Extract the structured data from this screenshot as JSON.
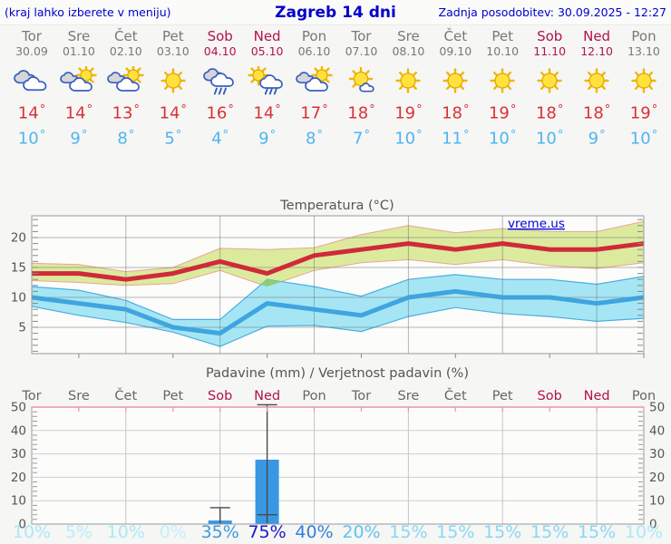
{
  "header": {
    "left_note": "(kraj lahko izberete v meniju)",
    "title": "Zagreb 14 dni",
    "last_update": "Zadnja posodobitev: 30.09.2025 - 12:27"
  },
  "colors": {
    "header_text": "#0000cc",
    "weekday": "#787878",
    "weekend": "#b0134d",
    "high_temp": "#d83238",
    "low_temp": "#4fb4f2",
    "max_line": "#cf2a3a",
    "min_line": "#3fa5e0",
    "max_band": "#dcea9e",
    "min_band": "#a6e6f4",
    "band_overlap": "#8ccf70",
    "bar": "#3898e4",
    "axis_text": "#555555",
    "watermark": "#0000dd",
    "precip_top_border": "#e895a5"
  },
  "days": [
    {
      "name": "Tor",
      "date": "30.09",
      "weekend": false,
      "icon": "cloudy",
      "high": 14,
      "low": 10
    },
    {
      "name": "Sre",
      "date": "01.10",
      "weekend": false,
      "icon": "partly-cloudy",
      "high": 14,
      "low": 9
    },
    {
      "name": "Čet",
      "date": "02.10",
      "weekend": false,
      "icon": "partly-cloudy",
      "high": 13,
      "low": 8
    },
    {
      "name": "Pet",
      "date": "03.10",
      "weekend": false,
      "icon": "sunny",
      "high": 14,
      "low": 5
    },
    {
      "name": "Sob",
      "date": "04.10",
      "weekend": true,
      "icon": "rain",
      "high": 16,
      "low": 4
    },
    {
      "name": "Ned",
      "date": "05.10",
      "weekend": true,
      "icon": "sun-rain",
      "high": 14,
      "low": 9
    },
    {
      "name": "Pon",
      "date": "06.10",
      "weekend": false,
      "icon": "partly-cloudy",
      "high": 17,
      "low": 8
    },
    {
      "name": "Tor",
      "date": "07.10",
      "weekend": false,
      "icon": "mostly-sunny",
      "high": 18,
      "low": 7
    },
    {
      "name": "Sre",
      "date": "08.10",
      "weekend": false,
      "icon": "sunny",
      "high": 19,
      "low": 10
    },
    {
      "name": "Čet",
      "date": "09.10",
      "weekend": false,
      "icon": "sunny",
      "high": 18,
      "low": 11
    },
    {
      "name": "Pet",
      "date": "10.10",
      "weekend": false,
      "icon": "sunny",
      "high": 19,
      "low": 10
    },
    {
      "name": "Sob",
      "date": "11.10",
      "weekend": true,
      "icon": "sunny",
      "high": 18,
      "low": 10
    },
    {
      "name": "Ned",
      "date": "12.10",
      "weekend": true,
      "icon": "sunny",
      "high": 18,
      "low": 9
    },
    {
      "name": "Pon",
      "date": "13.10",
      "weekend": false,
      "icon": "sunny",
      "high": 19,
      "low": 10
    }
  ],
  "chart_data": [
    {
      "type": "line",
      "title": "Temperatura (°C)",
      "watermark": "vreme.us",
      "categories": [
        "Tor",
        "Sre",
        "Čet",
        "Pet",
        "Sob",
        "Ned",
        "Pon",
        "Tor",
        "Sre",
        "Čet",
        "Pet",
        "Sob",
        "Ned",
        "Pon"
      ],
      "ylim": [
        0.6,
        23.6
      ],
      "yticks": [
        5,
        10,
        15,
        20
      ],
      "grid": true,
      "legend": "none",
      "series": [
        {
          "name": "max temperature",
          "color": "#cf2a3a",
          "values": [
            14,
            14,
            13,
            14,
            16,
            14,
            17,
            18,
            19,
            18,
            19,
            18,
            18,
            19
          ]
        },
        {
          "name": "min temperature",
          "color": "#3fa5e0",
          "values": [
            10,
            9,
            8,
            5,
            4,
            9,
            8,
            7,
            10,
            11,
            10,
            10,
            9,
            10
          ]
        }
      ],
      "bands": [
        {
          "name": "max range",
          "fill": "#dcea9e",
          "edge": "#eaa68f",
          "upper": [
            15.7,
            15.5,
            14.3,
            15,
            18.2,
            18,
            18.3,
            20.5,
            22,
            20.8,
            21.5,
            21,
            21,
            22.7
          ],
          "lower": [
            12.8,
            12.5,
            12,
            12.3,
            14.5,
            11.8,
            14.5,
            15.8,
            16.3,
            15.5,
            16.3,
            15.3,
            14.8,
            15.8
          ]
        },
        {
          "name": "min range",
          "fill": "#a6e6f4",
          "edge": "#49aee2",
          "upper": [
            11.8,
            11.2,
            9.5,
            6.3,
            6.3,
            13,
            11.8,
            10.2,
            13,
            13.8,
            13,
            13,
            12.2,
            13.5
          ],
          "lower": [
            8.5,
            7,
            5.8,
            4.2,
            1.8,
            5.2,
            5.3,
            4.3,
            6.8,
            8.3,
            7.3,
            6.8,
            6,
            6.5
          ]
        }
      ]
    },
    {
      "type": "bar",
      "title": "Padavine (mm) / Verjetnost padavin (%)",
      "categories": [
        "Tor",
        "Sre",
        "Čet",
        "Pet",
        "Sob",
        "Ned",
        "Pon",
        "Tor",
        "Sre",
        "Čet",
        "Pet",
        "Sob",
        "Ned",
        "Pon"
      ],
      "ylim": [
        0,
        52
      ],
      "yticks": [
        0,
        10,
        20,
        30,
        40,
        50
      ],
      "values": [
        0,
        0,
        0,
        0,
        1.5,
        27.5,
        0,
        0,
        0,
        0,
        0,
        0,
        0,
        0
      ],
      "whiskers": [
        {
          "day_index": 4,
          "low": 1,
          "high": 7
        },
        {
          "day_index": 5,
          "low": 4,
          "high": 51
        }
      ],
      "probabilities": [
        {
          "label": "10%",
          "color": "#a9e9f8"
        },
        {
          "label": "5%",
          "color": "#b6edfa"
        },
        {
          "label": "10%",
          "color": "#a9e9f8"
        },
        {
          "label": "0%",
          "color": "#c0f1fb"
        },
        {
          "label": "35%",
          "color": "#3e9ce2"
        },
        {
          "label": "75%",
          "color": "#1a17d1"
        },
        {
          "label": "40%",
          "color": "#2f7fdb"
        },
        {
          "label": "20%",
          "color": "#5fc3ef"
        },
        {
          "label": "15%",
          "color": "#86d8f4"
        },
        {
          "label": "15%",
          "color": "#86d8f4"
        },
        {
          "label": "15%",
          "color": "#86d8f4"
        },
        {
          "label": "15%",
          "color": "#86d8f4"
        },
        {
          "label": "15%",
          "color": "#86d8f4"
        },
        {
          "label": "10%",
          "color": "#a9e9f8"
        }
      ]
    }
  ]
}
